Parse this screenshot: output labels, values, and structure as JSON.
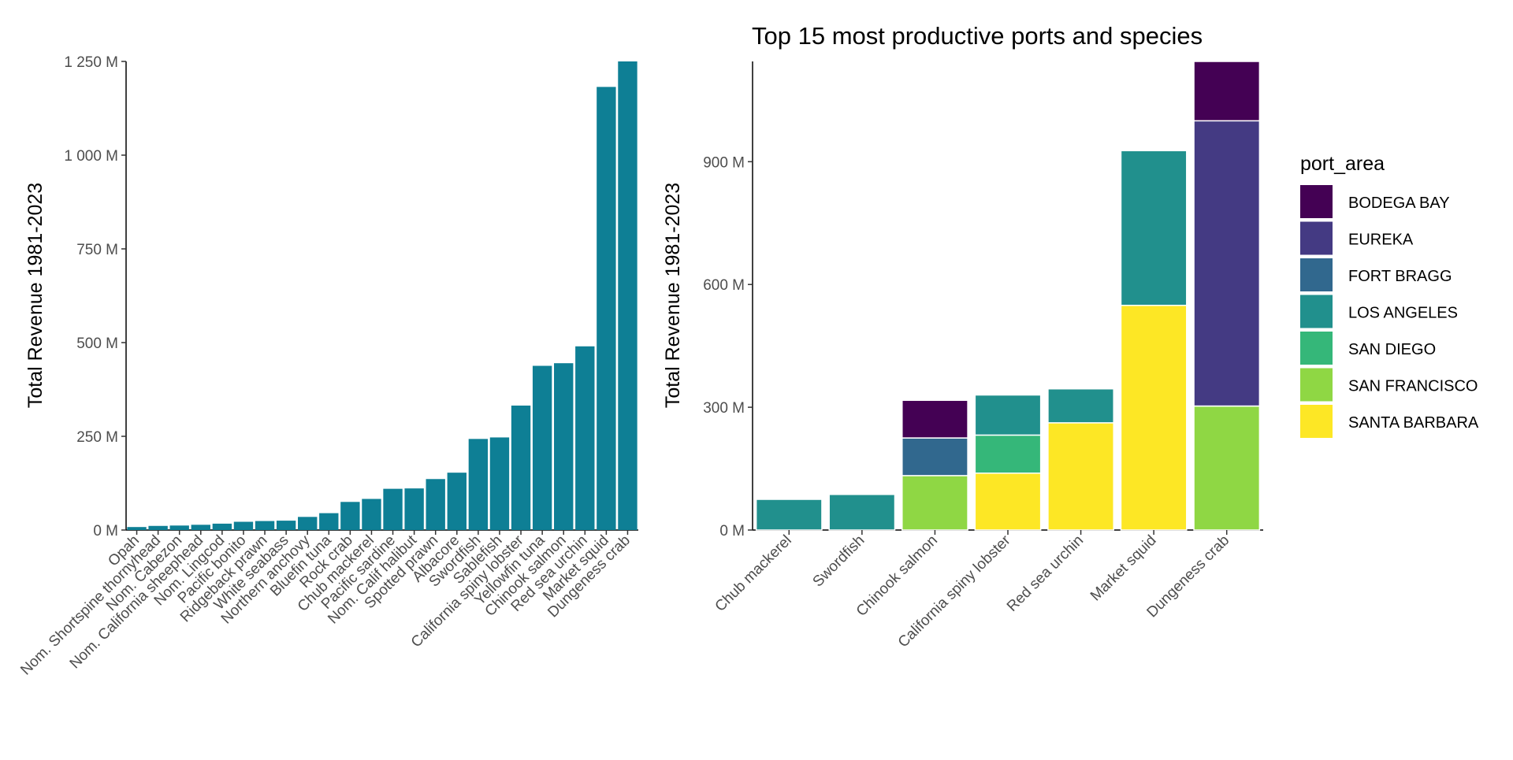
{
  "chart_data": [
    {
      "type": "bar",
      "title": "",
      "xlabel": "",
      "ylabel": "Total Revenue 1981-2023",
      "ylim": [
        0,
        1250
      ],
      "y_unit": "M",
      "yticks": [
        "0 M",
        "250 M",
        "500 M",
        "750 M",
        "1 000 M",
        "1 250 M"
      ],
      "bar_color": "#0e7f95",
      "grid": false,
      "categories": [
        "Opah",
        "Nom. Shortspine thornyhead",
        "Nom. Cabezon",
        "Nom. California sheephead",
        "Nom. Lingcod",
        "Pacific bonito",
        "Ridgeback prawn",
        "White seabass",
        "Northern anchovy",
        "Bluefin tuna",
        "Rock crab",
        "Chub mackerel",
        "Pacific sardine",
        "Nom. Calif halibut",
        "Spotted prawn",
        "Albacore",
        "Swordfish",
        "Sablefish",
        "California spiny lobster",
        "Yellowfin tuna",
        "Chinook salmon",
        "Red sea urchin",
        "Market squid",
        "Dungeness crab"
      ],
      "values": [
        8,
        11,
        12,
        14,
        17,
        22,
        24,
        25,
        35,
        45,
        75,
        83,
        110,
        111,
        136,
        153,
        243,
        247,
        332,
        438,
        445,
        490,
        1182,
        1250
      ]
    },
    {
      "type": "bar",
      "stacked": true,
      "title": "Top 15 most productive ports and species",
      "xlabel": "",
      "ylabel": "Total Revenue 1981-2023",
      "ylim": [
        0,
        1145
      ],
      "y_unit": "M",
      "yticks": [
        "0 M",
        "300 M",
        "600 M",
        "900 M"
      ],
      "grid": false,
      "legend": {
        "title": "port_area",
        "position": "right"
      },
      "categories": [
        "Chub mackerel",
        "Swordfish",
        "Chinook salmon",
        "California spiny lobster",
        "Red sea urchin",
        "Market squid",
        "Dungeness crab"
      ],
      "series": [
        {
          "name": "BODEGA BAY",
          "color": "#440154",
          "values": [
            0,
            0,
            92,
            0,
            0,
            0,
            145
          ]
        },
        {
          "name": "EUREKA",
          "color": "#443a83",
          "values": [
            0,
            0,
            0,
            0,
            0,
            0,
            697
          ]
        },
        {
          "name": "FORT BRAGG",
          "color": "#31688e",
          "values": [
            0,
            0,
            92,
            0,
            0,
            0,
            0
          ]
        },
        {
          "name": "LOS ANGELES",
          "color": "#21908d",
          "values": [
            75,
            87,
            0,
            98,
            83,
            378,
            0
          ]
        },
        {
          "name": "SAN DIEGO",
          "color": "#35b779",
          "values": [
            0,
            0,
            0,
            93,
            0,
            0,
            0
          ]
        },
        {
          "name": "SAN FRANCISCO",
          "color": "#8fd744",
          "values": [
            0,
            0,
            133,
            0,
            0,
            0,
            303
          ]
        },
        {
          "name": "SANTA BARBARA",
          "color": "#fde725",
          "values": [
            0,
            0,
            0,
            139,
            262,
            549,
            0
          ]
        }
      ]
    }
  ]
}
